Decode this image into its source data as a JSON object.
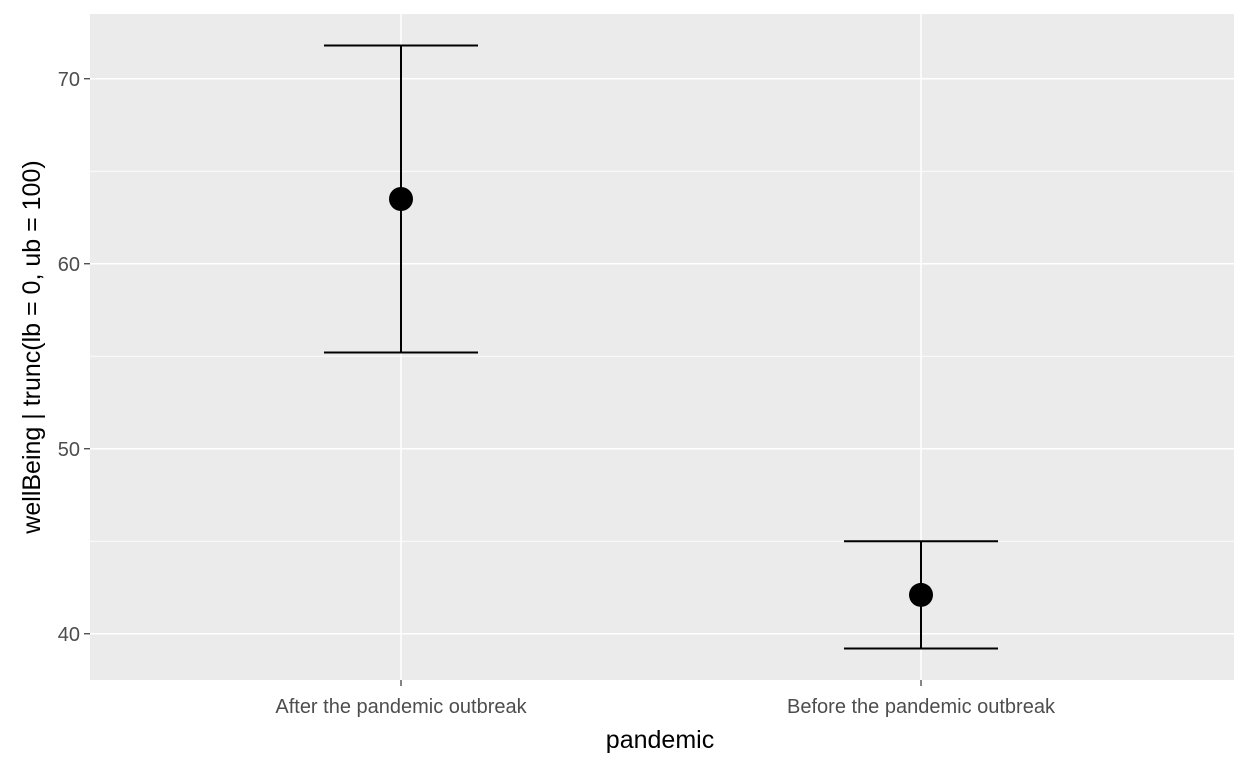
{
  "chart_data": {
    "type": "scatter",
    "xlabel": "pandemic",
    "ylabel": "wellBeing | trunc(lb = 0, ub = 100)",
    "ylim": [
      37.5,
      73.5
    ],
    "y_ticks": [
      40,
      50,
      60,
      70
    ],
    "y_tick_labels": [
      "40",
      "50",
      "60",
      "70"
    ],
    "categories": [
      "After the pandemic outbreak",
      "Before the pandemic outbreak"
    ],
    "series": [
      {
        "values": [
          63.5,
          42.1
        ],
        "lower": [
          55.2,
          39.2
        ],
        "upper": [
          71.8,
          45.0
        ]
      }
    ],
    "grid": true,
    "colors": {
      "panel": "#ebebeb",
      "grid": "#ffffff",
      "marks": "#000000"
    }
  }
}
